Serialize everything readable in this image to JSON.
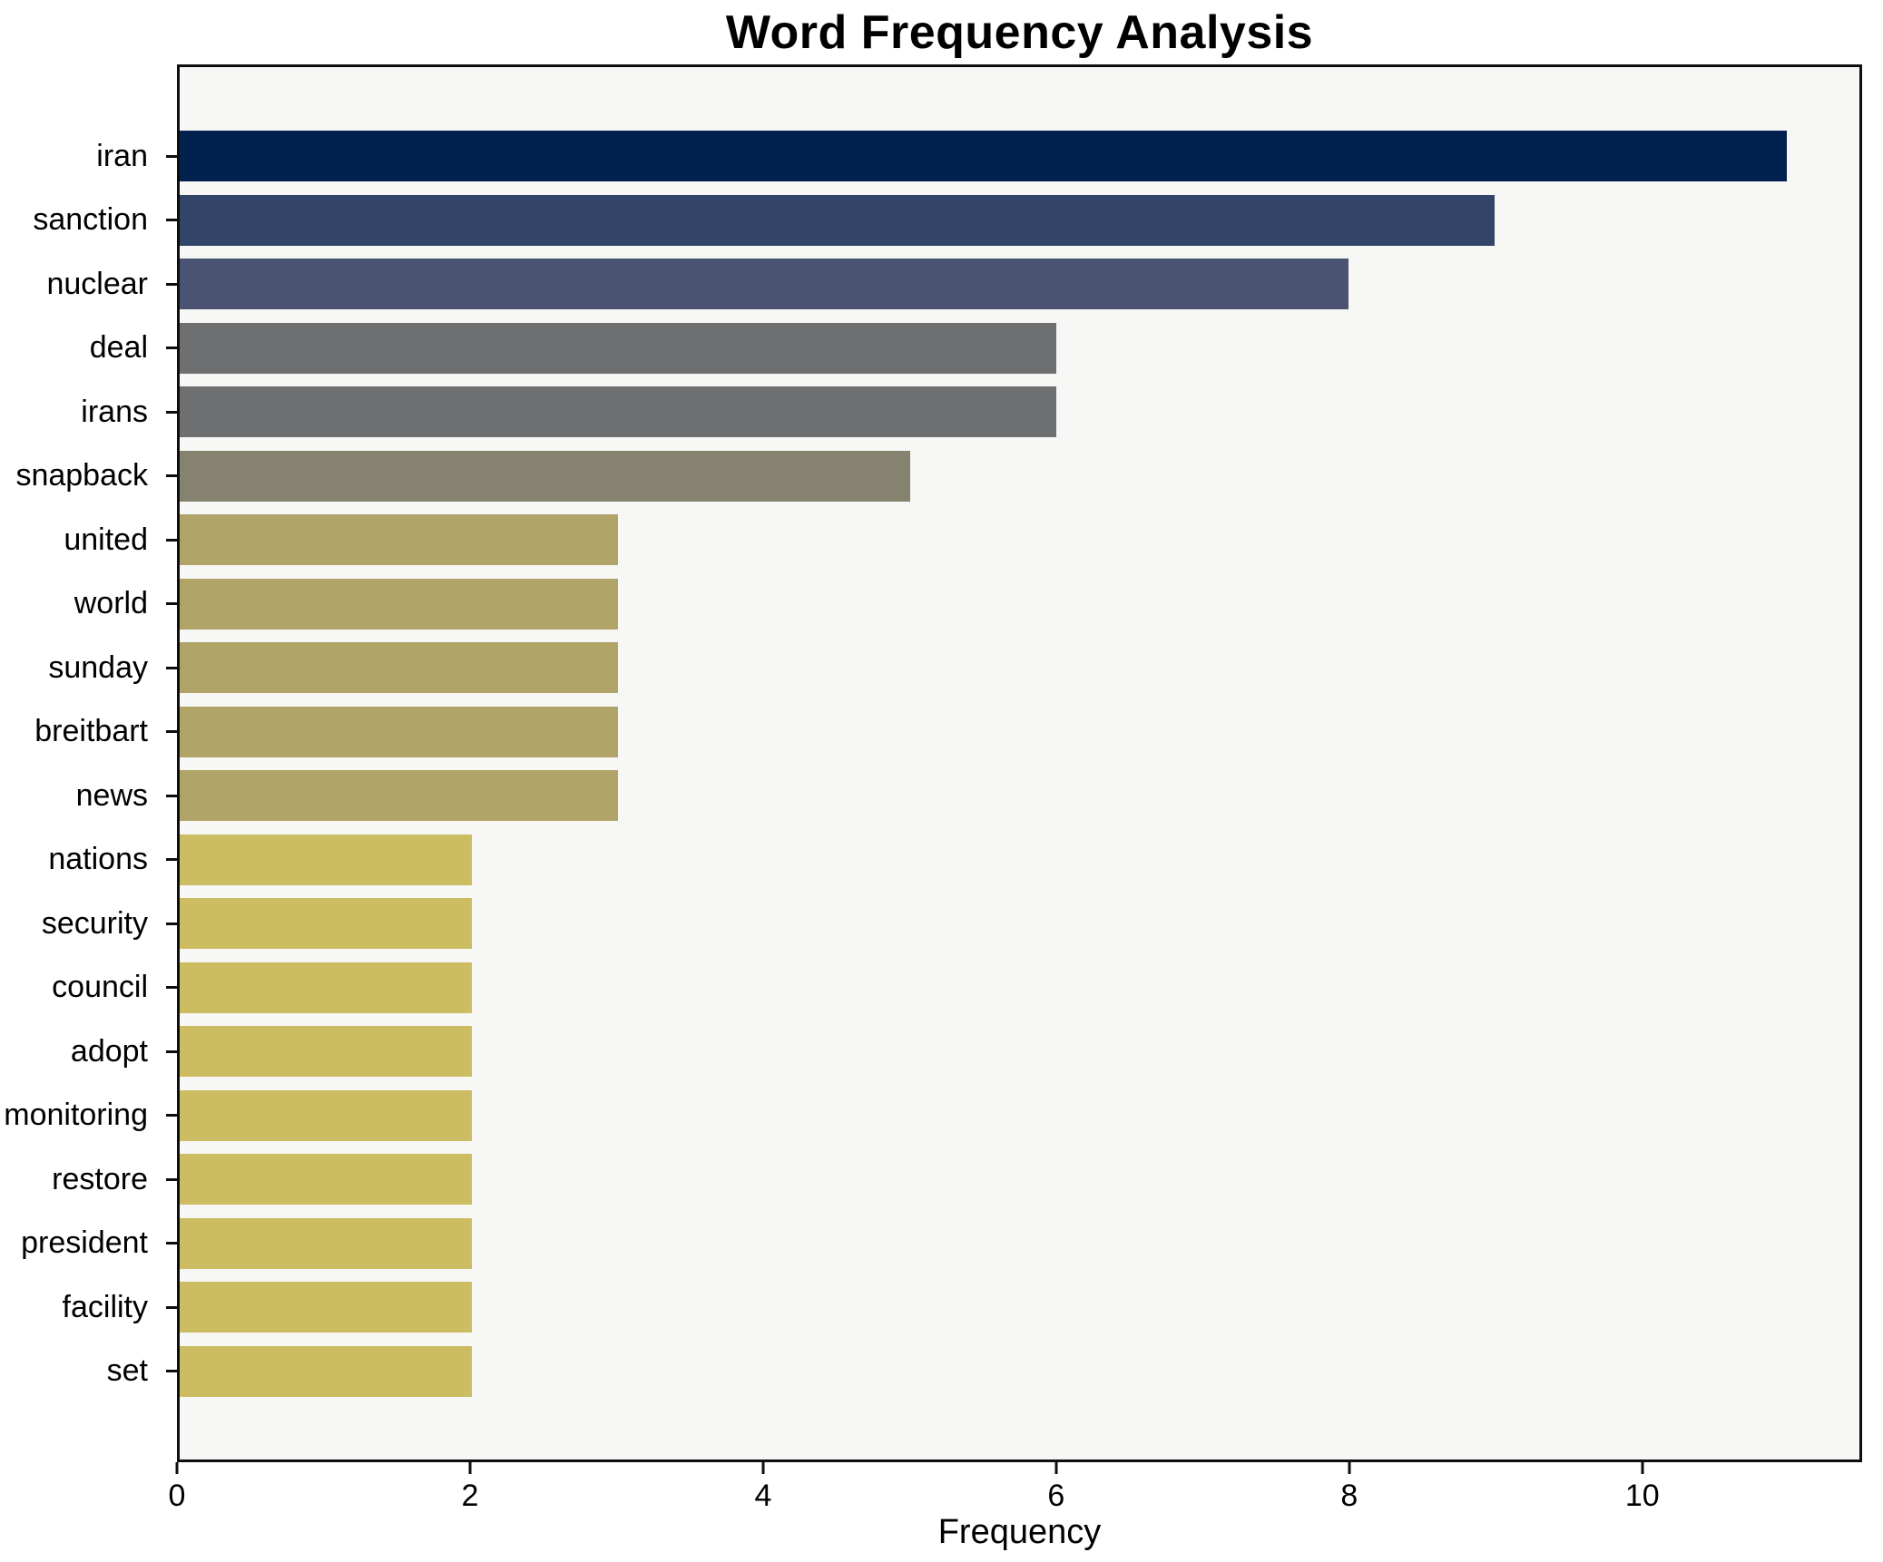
{
  "figure": {
    "title": "Word Frequency Analysis",
    "xlabel": "Frequency"
  },
  "chart_data": {
    "type": "bar",
    "orientation": "horizontal",
    "title": "Word Frequency Analysis",
    "xlabel": "Frequency",
    "ylabel": "",
    "xlim": [
      0,
      11.5
    ],
    "xticks": [
      0,
      2,
      4,
      6,
      8,
      10
    ],
    "grid": false,
    "legend": null,
    "bar_thickness_ratio": 0.8,
    "colors": {
      "plot_background": "#f7f7f6",
      "figure_background": "#ffffff",
      "axis_spine": "#0e0e0e",
      "text": "#000000"
    },
    "categories": [
      "iran",
      "sanction",
      "nuclear",
      "deal",
      "irans",
      "snapback",
      "united",
      "world",
      "sunday",
      "breitbart",
      "news",
      "nations",
      "security",
      "council",
      "adopt",
      "monitoring",
      "restore",
      "president",
      "facility",
      "set"
    ],
    "values": [
      11,
      9,
      8,
      6,
      6,
      5,
      3,
      3,
      3,
      3,
      3,
      2,
      2,
      2,
      2,
      2,
      2,
      2,
      2,
      2
    ],
    "bar_colors": [
      "#01224e",
      "#334469",
      "#4a5472",
      "#6e6f70",
      "#6e6f70",
      "#858270",
      "#b0a468",
      "#b0a468",
      "#b0a468",
      "#b0a468",
      "#b0a468",
      "#ccbc62",
      "#ccbc62",
      "#ccbc62",
      "#ccbc62",
      "#ccbc62",
      "#ccbc62",
      "#ccbc62",
      "#ccbc62",
      "#ccbc62"
    ]
  }
}
